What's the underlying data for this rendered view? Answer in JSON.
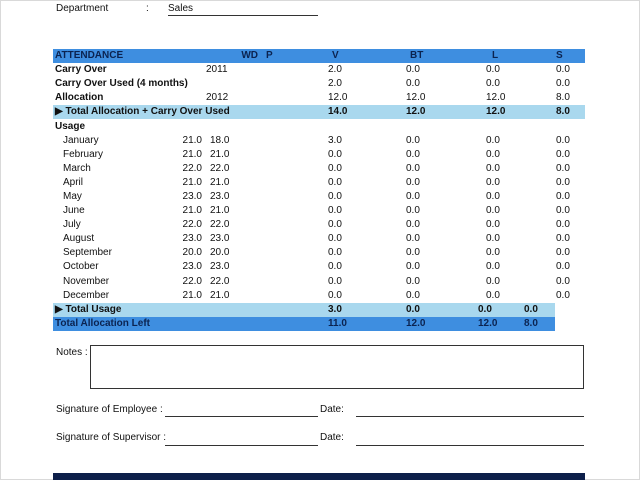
{
  "department": {
    "label": "Department",
    "colon": ":",
    "value": "Sales"
  },
  "table": {
    "headers": {
      "name": "ATTENDANCE",
      "wd": "WD",
      "p": "P",
      "v": "V",
      "bt": "BT",
      "l": "L",
      "s": "S"
    },
    "carry_over": {
      "label": "Carry Over",
      "year": "2011",
      "v": "2.0",
      "bt": "0.0",
      "l": "0.0",
      "s": "0.0"
    },
    "carry_over_used": {
      "label": "Carry Over Used (4 months)",
      "v": "2.0",
      "bt": "0.0",
      "l": "0.0",
      "s": "0.0"
    },
    "allocation": {
      "label": "Allocation",
      "year": "2012",
      "v": "12.0",
      "bt": "12.0",
      "l": "12.0",
      "s": "8.0"
    },
    "total_allocation": {
      "label": "▶ Total Allocation + Carry Over Used",
      "v": "14.0",
      "bt": "12.0",
      "l": "12.0",
      "s": "8.0"
    },
    "usage_label": "Usage",
    "months": [
      {
        "name": "January",
        "wd": "21.0",
        "p": "18.0",
        "v": "3.0",
        "bt": "0.0",
        "l": "0.0",
        "s": "0.0"
      },
      {
        "name": "February",
        "wd": "21.0",
        "p": "21.0",
        "v": "0.0",
        "bt": "0.0",
        "l": "0.0",
        "s": "0.0"
      },
      {
        "name": "March",
        "wd": "22.0",
        "p": "22.0",
        "v": "0.0",
        "bt": "0.0",
        "l": "0.0",
        "s": "0.0"
      },
      {
        "name": "April",
        "wd": "21.0",
        "p": "21.0",
        "v": "0.0",
        "bt": "0.0",
        "l": "0.0",
        "s": "0.0"
      },
      {
        "name": "May",
        "wd": "23.0",
        "p": "23.0",
        "v": "0.0",
        "bt": "0.0",
        "l": "0.0",
        "s": "0.0"
      },
      {
        "name": "June",
        "wd": "21.0",
        "p": "21.0",
        "v": "0.0",
        "bt": "0.0",
        "l": "0.0",
        "s": "0.0"
      },
      {
        "name": "July",
        "wd": "22.0",
        "p": "22.0",
        "v": "0.0",
        "bt": "0.0",
        "l": "0.0",
        "s": "0.0"
      },
      {
        "name": "August",
        "wd": "23.0",
        "p": "23.0",
        "v": "0.0",
        "bt": "0.0",
        "l": "0.0",
        "s": "0.0"
      },
      {
        "name": "September",
        "wd": "20.0",
        "p": "20.0",
        "v": "0.0",
        "bt": "0.0",
        "l": "0.0",
        "s": "0.0"
      },
      {
        "name": "October",
        "wd": "23.0",
        "p": "23.0",
        "v": "0.0",
        "bt": "0.0",
        "l": "0.0",
        "s": "0.0"
      },
      {
        "name": "November",
        "wd": "22.0",
        "p": "22.0",
        "v": "0.0",
        "bt": "0.0",
        "l": "0.0",
        "s": "0.0"
      },
      {
        "name": "December",
        "wd": "21.0",
        "p": "21.0",
        "v": "0.0",
        "bt": "0.0",
        "l": "0.0",
        "s": "0.0"
      }
    ],
    "total_usage": {
      "label": "▶ Total Usage",
      "v": "3.0",
      "bt": "0.0",
      "l": "0.0",
      "s": "0.0"
    },
    "total_left": {
      "label": "Total Allocation Left",
      "v": "11.0",
      "bt": "12.0",
      "l": "12.0",
      "s": "8.0"
    }
  },
  "notes": {
    "label": "Notes :"
  },
  "signatures": {
    "employee": "Signature of Employee :",
    "supervisor": "Signature of Supervisor :",
    "date": "Date:"
  },
  "colors": {
    "header_blue": "#3e8ee0",
    "total_light_blue": "#a9d8ee",
    "footer_navy": "#0d1f4a"
  }
}
